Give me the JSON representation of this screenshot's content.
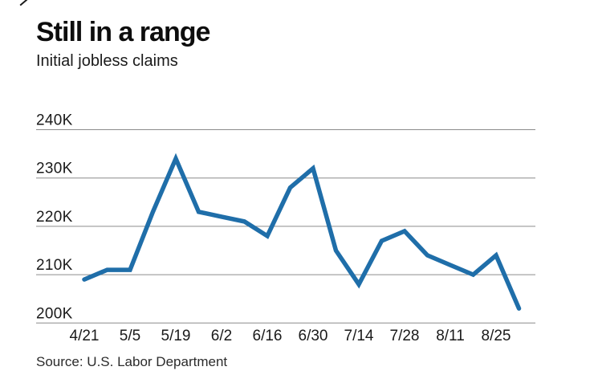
{
  "header": {
    "title": "Still in a range",
    "subtitle": "Initial jobless claims"
  },
  "footer": {
    "source": "Source: U.S. Labor Department"
  },
  "chart_data": {
    "type": "line",
    "title": "Still in a range",
    "subtitle": "Initial jobless claims",
    "source": "Source: U.S. Labor Department",
    "units": "claims, thousands (K)",
    "x": [
      "4/21",
      "4/28",
      "5/5",
      "5/12",
      "5/19",
      "5/26",
      "6/2",
      "6/9",
      "6/16",
      "6/23",
      "6/30",
      "7/7",
      "7/14",
      "7/21",
      "7/28",
      "8/4",
      "8/11",
      "8/18",
      "8/25",
      "9/1"
    ],
    "values": [
      209,
      211,
      211,
      223,
      234,
      223,
      222,
      221,
      218,
      228,
      232,
      215,
      208,
      217,
      219,
      214,
      212,
      210,
      214,
      203
    ],
    "x_tick_labels": [
      "4/21",
      "5/5",
      "5/19",
      "6/2",
      "6/16",
      "6/30",
      "7/14",
      "7/28",
      "8/11",
      "8/25"
    ],
    "x_tick_every": 2,
    "y_ticks": [
      "240K",
      "230K",
      "220K",
      "210K",
      "200K"
    ],
    "y_tick_values": [
      240,
      230,
      220,
      210,
      200
    ],
    "ylim": [
      200,
      240
    ],
    "xlabel": "",
    "ylabel": "",
    "grid": "horizontal",
    "legend": "none",
    "line_color": "#1f6ea9",
    "grid_color": "#8c8c8c",
    "label_color": "#1a1a1a"
  }
}
